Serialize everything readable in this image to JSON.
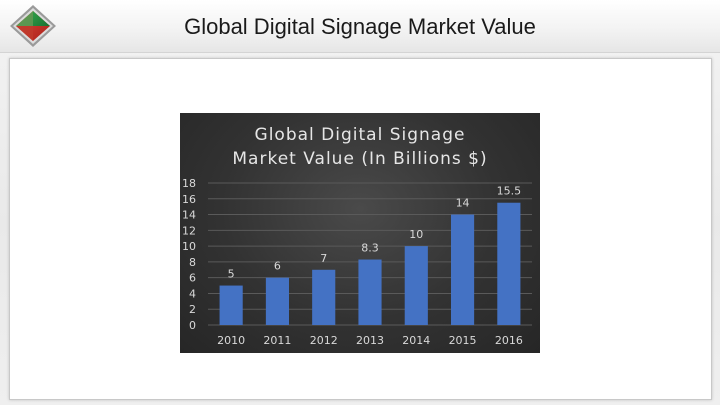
{
  "header": {
    "title": "Global Digital Signage Market Value",
    "logo_icon": "diamond-logo-icon"
  },
  "colors": {
    "bar": "#4472c4",
    "chart_background": "#333333",
    "chart_text": "#d9d9d9"
  },
  "chart_data": {
    "type": "bar",
    "title_lines": [
      "Global Digital Signage",
      "Market Value (In Billions $)"
    ],
    "categories": [
      "2010",
      "2011",
      "2012",
      "2013",
      "2014",
      "2015",
      "2016"
    ],
    "values": [
      5,
      6,
      7,
      8.3,
      10,
      14,
      15.5
    ],
    "data_labels": [
      "5",
      "6",
      "7",
      "8.3",
      "10",
      "14",
      "15.5"
    ],
    "y_ticks": [
      "0",
      "2",
      "4",
      "6",
      "8",
      "10",
      "12",
      "14",
      "16",
      "18"
    ],
    "ylim": [
      0,
      18
    ],
    "grid": true,
    "legend": "none"
  }
}
